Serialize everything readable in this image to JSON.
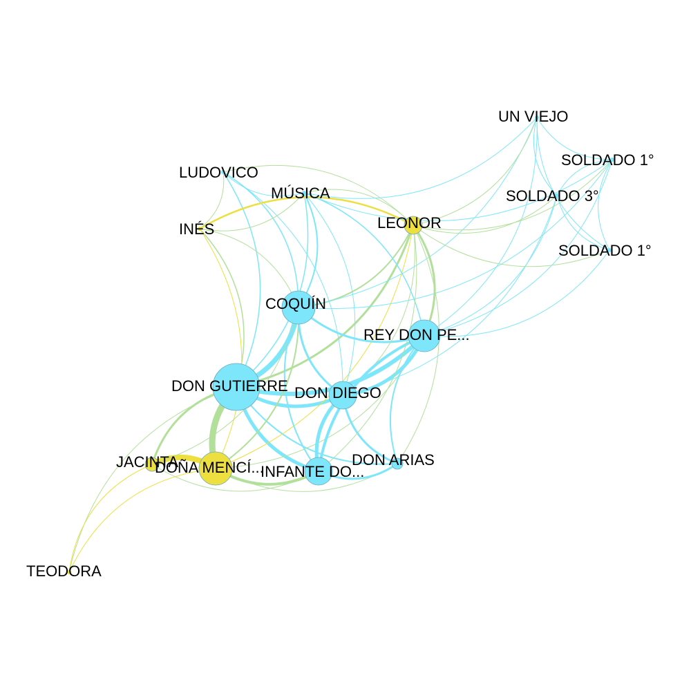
{
  "colors": {
    "male": "#7ee6fb",
    "female": "#eddf3f",
    "mixed": "#b2e09b",
    "node_stroke": "#6aa8b8"
  },
  "nodes": [
    {
      "id": "don-gutierre",
      "label": "DON GUTIERRE",
      "gender": "male"
    },
    {
      "id": "coquin",
      "label": "COQUÍN",
      "gender": "male"
    },
    {
      "id": "don-diego",
      "label": "DON DIEGO",
      "gender": "male"
    },
    {
      "id": "rey-don-pedro",
      "label": "REY DON PE...",
      "gender": "male"
    },
    {
      "id": "infante",
      "label": "INFANTE DO...",
      "gender": "male"
    },
    {
      "id": "don-arias",
      "label": "DON ARIAS",
      "gender": "male"
    },
    {
      "id": "dona-mencia",
      "label": "DOÑA MENCÍ...",
      "gender": "female"
    },
    {
      "id": "jacinta",
      "label": "JACINTA",
      "gender": "female"
    },
    {
      "id": "leonor",
      "label": "LEONOR",
      "gender": "female"
    },
    {
      "id": "teodora",
      "label": "TEODORA",
      "gender": "female"
    },
    {
      "id": "ines",
      "label": "INÉS",
      "gender": "female"
    },
    {
      "id": "ludovico",
      "label": "LUDOVICO",
      "gender": "male"
    },
    {
      "id": "musica",
      "label": "MÚSICA",
      "gender": "male"
    },
    {
      "id": "un-viejo",
      "label": "UN VIEJO",
      "gender": "male"
    },
    {
      "id": "soldado-1a",
      "label": "SOLDADO 1°",
      "gender": "male"
    },
    {
      "id": "soldado-3",
      "label": "SOLDADO 3°",
      "gender": "male"
    },
    {
      "id": "soldado-1b",
      "label": "SOLDADO 1°",
      "gender": "male"
    }
  ],
  "edges": [
    {
      "source": "don-gutierre",
      "target": "dona-mencia",
      "weight": 9
    },
    {
      "source": "don-gutierre",
      "target": "coquin",
      "weight": 7
    },
    {
      "source": "don-gutierre",
      "target": "don-diego",
      "weight": 5
    },
    {
      "source": "don-gutierre",
      "target": "rey-don-pedro",
      "weight": 6
    },
    {
      "source": "don-gutierre",
      "target": "infante",
      "weight": 5
    },
    {
      "source": "don-gutierre",
      "target": "jacinta",
      "weight": 3
    },
    {
      "source": "don-gutierre",
      "target": "leonor",
      "weight": 3
    },
    {
      "source": "don-gutierre",
      "target": "don-arias",
      "weight": 2
    },
    {
      "source": "don-gutierre",
      "target": "ines",
      "weight": 1.5
    },
    {
      "source": "don-gutierre",
      "target": "ludovico",
      "weight": 1.5
    },
    {
      "source": "don-gutierre",
      "target": "musica",
      "weight": 1.5
    },
    {
      "source": "don-gutierre",
      "target": "teodora",
      "weight": 1
    },
    {
      "source": "dona-mencia",
      "target": "jacinta",
      "weight": 8
    },
    {
      "source": "dona-mencia",
      "target": "infante",
      "weight": 4
    },
    {
      "source": "dona-mencia",
      "target": "coquin",
      "weight": 2
    },
    {
      "source": "dona-mencia",
      "target": "teodora",
      "weight": 1
    },
    {
      "source": "dona-mencia",
      "target": "don-arias",
      "weight": 1
    },
    {
      "source": "dona-mencia",
      "target": "leonor",
      "weight": 1
    },
    {
      "source": "dona-mencia",
      "target": "ines",
      "weight": 1
    },
    {
      "source": "dona-mencia",
      "target": "rey-don-pedro",
      "weight": 1
    },
    {
      "source": "jacinta",
      "target": "teodora",
      "weight": 1
    },
    {
      "source": "jacinta",
      "target": "coquin",
      "weight": 1
    },
    {
      "source": "jacinta",
      "target": "infante",
      "weight": 1
    },
    {
      "source": "coquin",
      "target": "don-diego",
      "weight": 3
    },
    {
      "source": "coquin",
      "target": "rey-don-pedro",
      "weight": 3
    },
    {
      "source": "coquin",
      "target": "infante",
      "weight": 2
    },
    {
      "source": "coquin",
      "target": "leonor",
      "weight": 2
    },
    {
      "source": "coquin",
      "target": "musica",
      "weight": 2
    },
    {
      "source": "coquin",
      "target": "ludovico",
      "weight": 1.5
    },
    {
      "source": "coquin",
      "target": "ines",
      "weight": 1
    },
    {
      "source": "coquin",
      "target": "un-viejo",
      "weight": 1
    },
    {
      "source": "coquin",
      "target": "soldado-1a",
      "weight": 1
    },
    {
      "source": "don-diego",
      "target": "rey-don-pedro",
      "weight": 5
    },
    {
      "source": "don-diego",
      "target": "infante",
      "weight": 5
    },
    {
      "source": "don-diego",
      "target": "don-arias",
      "weight": 3
    },
    {
      "source": "don-diego",
      "target": "leonor",
      "weight": 1
    },
    {
      "source": "don-diego",
      "target": "musica",
      "weight": 1
    },
    {
      "source": "don-diego",
      "target": "ludovico",
      "weight": 1
    },
    {
      "source": "don-diego",
      "target": "soldado-3",
      "weight": 1
    },
    {
      "source": "rey-don-pedro",
      "target": "infante",
      "weight": 4
    },
    {
      "source": "rey-don-pedro",
      "target": "don-arias",
      "weight": 2
    },
    {
      "source": "rey-don-pedro",
      "target": "leonor",
      "weight": 3
    },
    {
      "source": "rey-don-pedro",
      "target": "musica",
      "weight": 1.5
    },
    {
      "source": "rey-don-pedro",
      "target": "un-viejo",
      "weight": 1
    },
    {
      "source": "rey-don-pedro",
      "target": "soldado-1a",
      "weight": 1
    },
    {
      "source": "rey-don-pedro",
      "target": "soldado-3",
      "weight": 1
    },
    {
      "source": "rey-don-pedro",
      "target": "soldado-1b",
      "weight": 1
    },
    {
      "source": "infante",
      "target": "don-arias",
      "weight": 3
    },
    {
      "source": "infante",
      "target": "leonor",
      "weight": 1
    },
    {
      "source": "don-arias",
      "target": "leonor",
      "weight": 1
    },
    {
      "source": "leonor",
      "target": "ines",
      "weight": 2.5
    },
    {
      "source": "leonor",
      "target": "un-viejo",
      "weight": 1
    },
    {
      "source": "leonor",
      "target": "soldado-1a",
      "weight": 1
    },
    {
      "source": "leonor",
      "target": "soldado-3",
      "weight": 1
    },
    {
      "source": "leonor",
      "target": "soldado-1b",
      "weight": 1
    },
    {
      "source": "leonor",
      "target": "ludovico",
      "weight": 1
    },
    {
      "source": "leonor",
      "target": "musica",
      "weight": 1
    },
    {
      "source": "ines",
      "target": "ludovico",
      "weight": 1
    },
    {
      "source": "ines",
      "target": "musica",
      "weight": 1
    },
    {
      "source": "ludovico",
      "target": "musica",
      "weight": 1
    },
    {
      "source": "musica",
      "target": "un-viejo",
      "weight": 1
    },
    {
      "source": "musica",
      "target": "soldado-1a",
      "weight": 1
    },
    {
      "source": "un-viejo",
      "target": "soldado-1a",
      "weight": 1
    },
    {
      "source": "un-viejo",
      "target": "soldado-3",
      "weight": 1
    },
    {
      "source": "un-viejo",
      "target": "soldado-1b",
      "weight": 1
    },
    {
      "source": "soldado-1a",
      "target": "soldado-3",
      "weight": 1
    },
    {
      "source": "soldado-1a",
      "target": "soldado-1b",
      "weight": 1
    },
    {
      "source": "soldado-3",
      "target": "soldado-1b",
      "weight": 1
    }
  ]
}
